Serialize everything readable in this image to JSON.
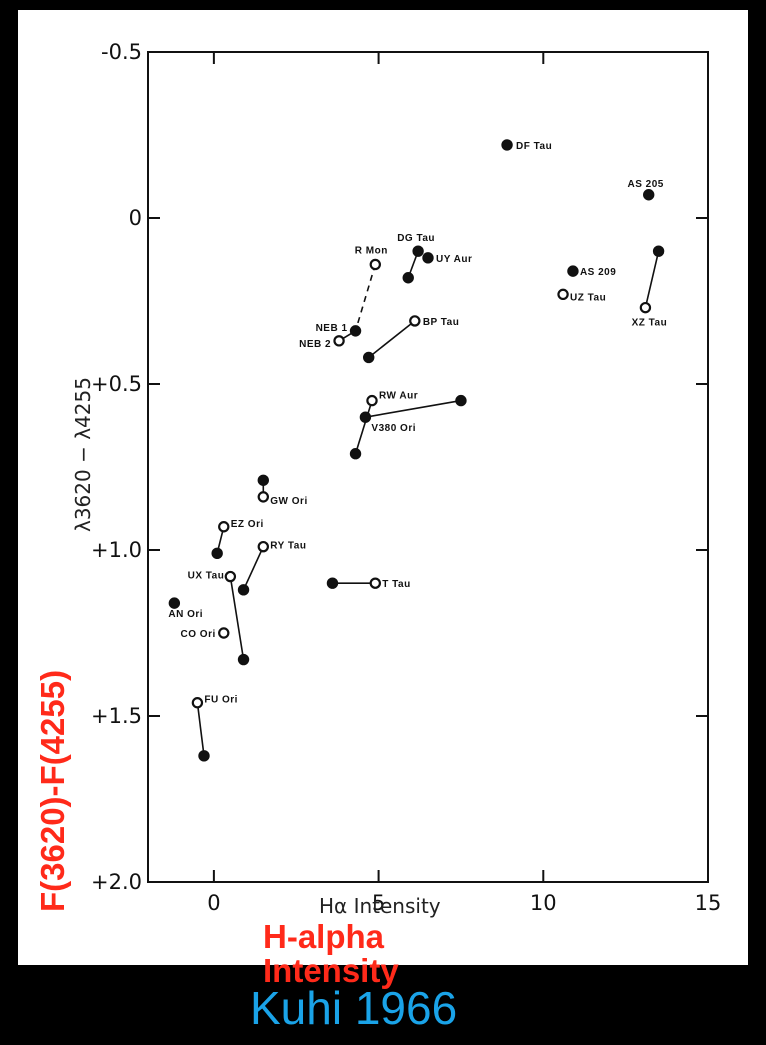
{
  "chart_data": {
    "type": "scatter",
    "title": "",
    "xlabel": "Hα Intensity",
    "ylabel": "λ3620 − λ4255",
    "xlim": [
      -2,
      15
    ],
    "ylim": [
      2.0,
      -0.5
    ],
    "x_ticks": [
      "0",
      "5",
      "10",
      "15"
    ],
    "y_ticks": [
      "-0.5",
      "0",
      "+0.5",
      "+1.0",
      "+1.5",
      "+2.0"
    ],
    "y_tick_values": [
      -0.5,
      0,
      0.5,
      1.0,
      1.5,
      2.0
    ],
    "x_tick_values": [
      0,
      5,
      10,
      15
    ],
    "points": [
      {
        "label": "DF Tau",
        "x": 8.9,
        "y": -0.22,
        "hollow": false
      },
      {
        "label": "AS 205",
        "x": 13.2,
        "y": -0.07,
        "hollow": false
      },
      {
        "label": "AS 209",
        "x": 10.9,
        "y": 0.16,
        "hollow": false
      },
      {
        "label": "UZ Tau",
        "x": 10.6,
        "y": 0.23,
        "hollow": true
      },
      {
        "label": "XZ Tau",
        "x": 13.1,
        "y": 0.27,
        "hollow": true
      },
      {
        "label": "",
        "x": 13.5,
        "y": 0.1,
        "hollow": false
      },
      {
        "label": "DG Tau",
        "x": 6.2,
        "y": 0.1,
        "hollow": false
      },
      {
        "label": "",
        "x": 5.9,
        "y": 0.18,
        "hollow": false
      },
      {
        "label": "UY Aur",
        "x": 6.5,
        "y": 0.12,
        "hollow": false
      },
      {
        "label": "R Mon",
        "x": 4.9,
        "y": 0.14,
        "hollow": true
      },
      {
        "label": "NEB 1",
        "x": 4.3,
        "y": 0.34,
        "hollow": false
      },
      {
        "label": "NEB 2",
        "x": 3.8,
        "y": 0.37,
        "hollow": true
      },
      {
        "label": "BP Tau",
        "x": 6.1,
        "y": 0.31,
        "hollow": true
      },
      {
        "label": "",
        "x": 4.7,
        "y": 0.42,
        "hollow": false
      },
      {
        "label": "RW Aur",
        "x": 4.8,
        "y": 0.55,
        "hollow": true
      },
      {
        "label": "",
        "x": 7.5,
        "y": 0.55,
        "hollow": false
      },
      {
        "label": "V380 Ori",
        "x": 4.6,
        "y": 0.6,
        "hollow": false
      },
      {
        "label": "",
        "x": 4.3,
        "y": 0.71,
        "hollow": false
      },
      {
        "label": "",
        "x": 1.5,
        "y": 0.79,
        "hollow": false
      },
      {
        "label": "GW Ori",
        "x": 1.5,
        "y": 0.84,
        "hollow": true
      },
      {
        "label": "EZ Ori",
        "x": 0.3,
        "y": 0.93,
        "hollow": true
      },
      {
        "label": "",
        "x": 0.1,
        "y": 1.01,
        "hollow": false
      },
      {
        "label": "RY Tau",
        "x": 1.5,
        "y": 0.99,
        "hollow": true
      },
      {
        "label": "UX Tau",
        "x": 0.5,
        "y": 1.08,
        "hollow": true
      },
      {
        "label": "",
        "x": 0.9,
        "y": 1.12,
        "hollow": false
      },
      {
        "label": "",
        "x": 3.6,
        "y": 1.1,
        "hollow": false
      },
      {
        "label": "T Tau",
        "x": 4.9,
        "y": 1.1,
        "hollow": true
      },
      {
        "label": "AN Ori",
        "x": -1.2,
        "y": 1.16,
        "hollow": false
      },
      {
        "label": "CO Ori",
        "x": 0.3,
        "y": 1.25,
        "hollow": true
      },
      {
        "label": "",
        "x": 0.9,
        "y": 1.33,
        "hollow": false
      },
      {
        "label": "FU Ori",
        "x": -0.5,
        "y": 1.46,
        "hollow": true
      },
      {
        "label": "",
        "x": -0.3,
        "y": 1.62,
        "hollow": false
      }
    ],
    "connections": [
      {
        "from": 4,
        "to": 5,
        "dashed": false
      },
      {
        "from": 6,
        "to": 7,
        "dashed": false
      },
      {
        "from": 9,
        "to": 10,
        "dashed": true
      },
      {
        "from": 10,
        "to": 11,
        "dashed": false
      },
      {
        "from": 12,
        "to": 13,
        "dashed": false
      },
      {
        "from": 14,
        "to": 17,
        "dashed": false
      },
      {
        "from": 16,
        "to": 15,
        "dashed": false
      },
      {
        "from": 18,
        "to": 19,
        "dashed": false
      },
      {
        "from": 20,
        "to": 21,
        "dashed": false
      },
      {
        "from": 22,
        "to": 24,
        "dashed": false
      },
      {
        "from": 23,
        "to": 29,
        "dashed": false
      },
      {
        "from": 25,
        "to": 26,
        "dashed": false
      },
      {
        "from": 30,
        "to": 31,
        "dashed": false
      }
    ]
  },
  "overlay": {
    "ylabel": "F(3620)-F(4255)",
    "xlabel": "H-alpha Intensity",
    "credit": "Kuhi 1966"
  },
  "colors": {
    "overlay_label": "#ff2a1a",
    "credit": "#1aa3e8",
    "background": "#000000",
    "paper": "#ffffff"
  }
}
